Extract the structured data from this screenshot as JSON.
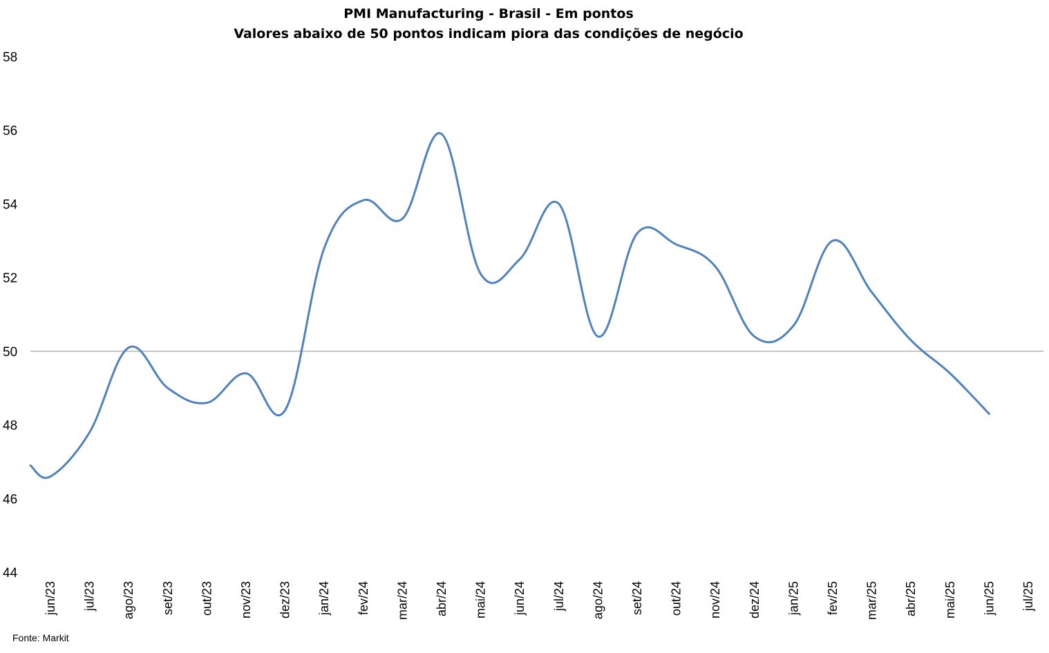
{
  "chart_data": {
    "type": "line",
    "title": "PMI Manufacturing - Brasil - Em pontos",
    "subtitle": "Valores abaixo de 50 pontos indicam piora das condições de negócio",
    "xlabel": "",
    "ylabel": "",
    "ylim": [
      44,
      58
    ],
    "yticks": [
      "44",
      "46",
      "48",
      "50",
      "52",
      "54",
      "56",
      "58"
    ],
    "reference_line": 50,
    "categories": [
      "jun/23",
      "jul/23",
      "ago/23",
      "set/23",
      "out/23",
      "nov/23",
      "dez/23",
      "jan/24",
      "fev/24",
      "mar/24",
      "abr/24",
      "mai/24",
      "jun/24",
      "jul/24",
      "ago/24",
      "set/24",
      "out/24",
      "nov/24",
      "dez/24",
      "jan/25",
      "fev/25",
      "mar/25",
      "abr/25",
      "mai/25",
      "jun/25",
      "jul/25"
    ],
    "series": [
      {
        "name": "",
        "color": "#4f81bd",
        "points": [
          {
            "x": "jun/23",
            "y": 46.9
          },
          {
            "x": "jun/23",
            "y": 46.6
          },
          {
            "x": "jul/23",
            "y": 47.8
          },
          {
            "x": "ago/23",
            "y": 50.1
          },
          {
            "x": "set/23",
            "y": 49.0
          },
          {
            "x": "out/23",
            "y": 48.6
          },
          {
            "x": "nov/23",
            "y": 49.4
          },
          {
            "x": "dez/23",
            "y": 48.4
          },
          {
            "x": "jan/24",
            "y": 52.8
          },
          {
            "x": "fev/24",
            "y": 54.1
          },
          {
            "x": "mar/24",
            "y": 53.6
          },
          {
            "x": "abr/24",
            "y": 55.9
          },
          {
            "x": "mai/24",
            "y": 52.1
          },
          {
            "x": "jun/24",
            "y": 52.5
          },
          {
            "x": "jul/24",
            "y": 54.0
          },
          {
            "x": "ago/24",
            "y": 50.4
          },
          {
            "x": "set/24",
            "y": 53.2
          },
          {
            "x": "out/24",
            "y": 52.9
          },
          {
            "x": "nov/24",
            "y": 52.3
          },
          {
            "x": "dez/24",
            "y": 50.4
          },
          {
            "x": "jan/25",
            "y": 50.7
          },
          {
            "x": "fev/25",
            "y": 53.0
          },
          {
            "x": "mar/25",
            "y": 51.6
          },
          {
            "x": "abr/25",
            "y": 50.3
          },
          {
            "x": "mai/25",
            "y": 49.4
          },
          {
            "x": "jun/25",
            "y": 48.3
          }
        ]
      }
    ]
  },
  "source": "Fonte: Markit"
}
